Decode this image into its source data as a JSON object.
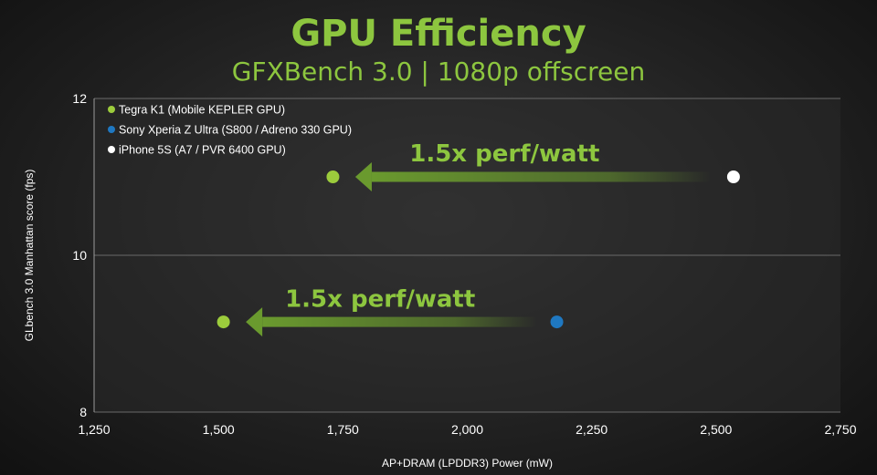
{
  "chart_data": {
    "type": "scatter",
    "title": "GPU Efficiency",
    "subtitle": "GFXBench 3.0 | 1080p offscreen",
    "xlabel": "AP+DRAM (LPDDR3) Power (mW)",
    "ylabel": "GLbench 3.0 Manhattan score (fps)",
    "xlim": [
      1250,
      2750
    ],
    "ylim": [
      8,
      12
    ],
    "xticks": [
      1250,
      1500,
      1750,
      2000,
      2250,
      2500,
      2750
    ],
    "xtick_labels": [
      "1,250",
      "1,500",
      "1,750",
      "2,000",
      "2,250",
      "2,500",
      "2,750"
    ],
    "yticks": [
      8,
      10,
      12
    ],
    "ytick_labels": [
      "8",
      "10",
      "12"
    ],
    "grid": true,
    "legend_position": "top-left",
    "series": [
      {
        "name": "Tegra K1 (Mobile KEPLER GPU)",
        "color": "#9ccc3c",
        "points": [
          {
            "x": 1730,
            "y": 11.0
          },
          {
            "x": 1510,
            "y": 9.15
          }
        ]
      },
      {
        "name": "Sony Xperia Z Ultra (S800 / Adreno 330 GPU)",
        "color": "#1f78c1",
        "points": [
          {
            "x": 2180,
            "y": 9.15
          }
        ]
      },
      {
        "name": "iPhone 5S (A7 / PVR 6400 GPU)",
        "color": "#ffffff",
        "points": [
          {
            "x": 2535,
            "y": 11.0
          }
        ]
      }
    ],
    "annotations": [
      {
        "text": "1.5x perf/watt",
        "arrow_from": {
          "x": 2490,
          "y": 11.0
        },
        "arrow_to": {
          "x": 1775,
          "y": 11.0
        },
        "label_at": {
          "x": 2075,
          "y": 11.3
        }
      },
      {
        "text": "1.5x perf/watt",
        "arrow_from": {
          "x": 2140,
          "y": 9.15
        },
        "arrow_to": {
          "x": 1555,
          "y": 9.15
        },
        "label_at": {
          "x": 1825,
          "y": 9.45
        }
      }
    ]
  }
}
